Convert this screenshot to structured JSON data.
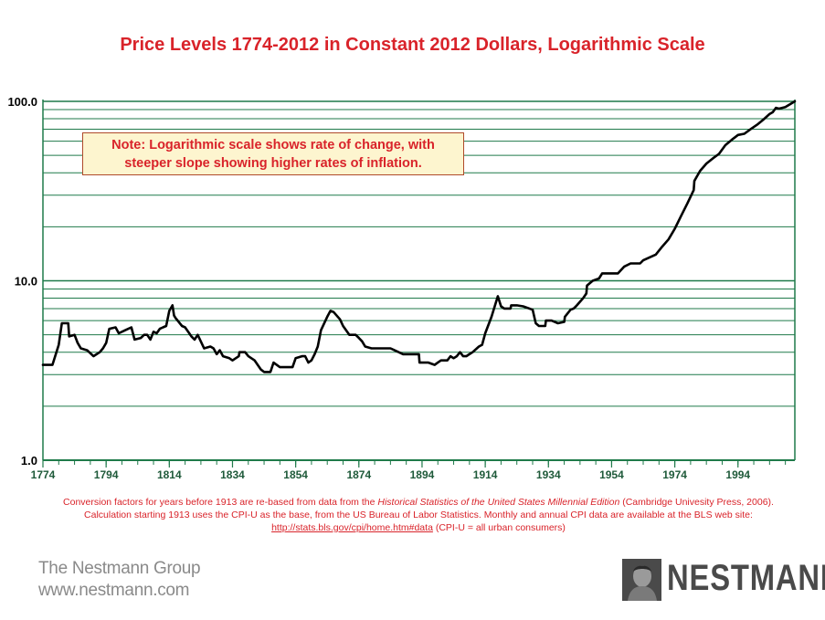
{
  "chart_data": {
    "type": "line",
    "title": "Price Levels 1774-2012 in Constant 2012 Dollars, Logarithmic Scale",
    "y_scale": "log",
    "ylim": [
      1,
      100
    ],
    "xlim": [
      1774,
      2012
    ],
    "y_ticks": [
      {
        "value": 1,
        "label": "1.0"
      },
      {
        "value": 10,
        "label": "10.0"
      },
      {
        "value": 100,
        "label": "100.0"
      }
    ],
    "x_ticks": [
      1774,
      1794,
      1814,
      1834,
      1854,
      1874,
      1894,
      1914,
      1934,
      1954,
      1974,
      1994
    ],
    "x_tick_labels": [
      "1774",
      "1794",
      "1814",
      "1834",
      "1854",
      "1874",
      "1894",
      "1914",
      "1934",
      "1954",
      "1974",
      "1994"
    ],
    "grid": true,
    "series": [
      {
        "color": "#000000",
        "points": [
          [
            1774,
            3.4
          ],
          [
            1777,
            3.4
          ],
          [
            1779,
            4.4
          ],
          [
            1780,
            5.8
          ],
          [
            1781,
            5.8
          ],
          [
            1782,
            5.8
          ],
          [
            1782.3,
            4.9
          ],
          [
            1784,
            5.0
          ],
          [
            1785,
            4.5
          ],
          [
            1786,
            4.2
          ],
          [
            1788,
            4.1
          ],
          [
            1790,
            3.8
          ],
          [
            1792,
            4.0
          ],
          [
            1793,
            4.2
          ],
          [
            1794,
            4.5
          ],
          [
            1795,
            5.4
          ],
          [
            1797,
            5.5
          ],
          [
            1798,
            5.1
          ],
          [
            1800,
            5.3
          ],
          [
            1802,
            5.5
          ],
          [
            1803,
            4.7
          ],
          [
            1805,
            4.8
          ],
          [
            1806,
            5.0
          ],
          [
            1807,
            5.0
          ],
          [
            1808,
            4.7
          ],
          [
            1809,
            5.2
          ],
          [
            1810,
            5.1
          ],
          [
            1811,
            5.4
          ],
          [
            1812,
            5.5
          ],
          [
            1813,
            5.6
          ],
          [
            1814,
            6.8
          ],
          [
            1815,
            7.3
          ],
          [
            1815.5,
            6.4
          ],
          [
            1816,
            6.2
          ],
          [
            1818,
            5.6
          ],
          [
            1819,
            5.5
          ],
          [
            1821,
            4.9
          ],
          [
            1822,
            4.7
          ],
          [
            1823,
            5.0
          ],
          [
            1825,
            4.2
          ],
          [
            1827,
            4.3
          ],
          [
            1828,
            4.2
          ],
          [
            1829,
            3.9
          ],
          [
            1830,
            4.1
          ],
          [
            1831,
            3.8
          ],
          [
            1833,
            3.7
          ],
          [
            1834,
            3.6
          ],
          [
            1836,
            3.8
          ],
          [
            1836.2,
            4.0
          ],
          [
            1838,
            4.0
          ],
          [
            1839,
            3.8
          ],
          [
            1841,
            3.6
          ],
          [
            1843,
            3.2
          ],
          [
            1844,
            3.1
          ],
          [
            1846,
            3.1
          ],
          [
            1847,
            3.5
          ],
          [
            1849,
            3.3
          ],
          [
            1851,
            3.3
          ],
          [
            1853,
            3.3
          ],
          [
            1854,
            3.7
          ],
          [
            1856,
            3.8
          ],
          [
            1857,
            3.8
          ],
          [
            1858,
            3.5
          ],
          [
            1859,
            3.6
          ],
          [
            1860,
            3.9
          ],
          [
            1861,
            4.3
          ],
          [
            1862,
            5.3
          ],
          [
            1864,
            6.3
          ],
          [
            1865,
            6.8
          ],
          [
            1866,
            6.7
          ],
          [
            1868,
            6.1
          ],
          [
            1869,
            5.6
          ],
          [
            1871,
            5.0
          ],
          [
            1873,
            5.0
          ],
          [
            1874,
            4.8
          ],
          [
            1875,
            4.6
          ],
          [
            1876,
            4.3
          ],
          [
            1878,
            4.2
          ],
          [
            1884,
            4.2
          ],
          [
            1888,
            3.9
          ],
          [
            1892,
            3.9
          ],
          [
            1893,
            3.9
          ],
          [
            1893.2,
            3.5
          ],
          [
            1896,
            3.5
          ],
          [
            1898,
            3.4
          ],
          [
            1899,
            3.5
          ],
          [
            1900,
            3.6
          ],
          [
            1902,
            3.6
          ],
          [
            1903,
            3.8
          ],
          [
            1904,
            3.7
          ],
          [
            1905,
            3.8
          ],
          [
            1906,
            4.0
          ],
          [
            1907,
            3.8
          ],
          [
            1908,
            3.8
          ],
          [
            1909,
            3.9
          ],
          [
            1910,
            4.0
          ],
          [
            1912,
            4.3
          ],
          [
            1913,
            4.4
          ],
          [
            1914,
            5.1
          ],
          [
            1916,
            6.3
          ],
          [
            1918,
            8.2
          ],
          [
            1919,
            7.2
          ],
          [
            1920,
            7.0
          ],
          [
            1922,
            7.0
          ],
          [
            1922.2,
            7.3
          ],
          [
            1924,
            7.3
          ],
          [
            1926,
            7.2
          ],
          [
            1929,
            6.9
          ],
          [
            1930,
            5.8
          ],
          [
            1931,
            5.6
          ],
          [
            1933,
            5.6
          ],
          [
            1933.2,
            6.0
          ],
          [
            1935,
            6.0
          ],
          [
            1937,
            5.8
          ],
          [
            1939,
            5.9
          ],
          [
            1939.2,
            6.3
          ],
          [
            1941,
            6.9
          ],
          [
            1942,
            7.0
          ],
          [
            1943,
            7.3
          ],
          [
            1945,
            8.0
          ],
          [
            1946,
            8.5
          ],
          [
            1946.2,
            9.4
          ],
          [
            1948,
            10.0
          ],
          [
            1950,
            10.3
          ],
          [
            1951,
            11.0
          ],
          [
            1953,
            11.0
          ],
          [
            1956,
            11.0
          ],
          [
            1958,
            12.0
          ],
          [
            1960,
            12.5
          ],
          [
            1963,
            12.5
          ],
          [
            1964,
            13.0
          ],
          [
            1966,
            13.5
          ],
          [
            1968,
            14.0
          ],
          [
            1970,
            15.5
          ],
          [
            1972,
            17.0
          ],
          [
            1974,
            19.5
          ],
          [
            1976,
            23.0
          ],
          [
            1978,
            27.0
          ],
          [
            1980,
            32.0
          ],
          [
            1980.2,
            36.0
          ],
          [
            1982,
            41.0
          ],
          [
            1984,
            45.0
          ],
          [
            1986,
            48.0
          ],
          [
            1988,
            51.0
          ],
          [
            1990,
            57.0
          ],
          [
            1992,
            61.0
          ],
          [
            1994,
            65.0
          ],
          [
            1996,
            66.0
          ],
          [
            1998,
            70.0
          ],
          [
            2000,
            74.0
          ],
          [
            2002,
            79.0
          ],
          [
            2004,
            85.0
          ],
          [
            2005,
            87.0
          ],
          [
            2006,
            92.0
          ],
          [
            2007,
            91.0
          ],
          [
            2009,
            93.0
          ],
          [
            2012,
            100.0
          ]
        ]
      }
    ]
  },
  "note": {
    "line1": "Note: Logarithmic scale shows rate of change, with",
    "line2": "steeper slope showing higher rates of inflation."
  },
  "footnote": {
    "part1": "Conversion factors for years before 1913 are re-based from data from the ",
    "italic": "Historical Statistics of the United States Millennial Edition",
    "part2": " (Cambridge Univesity Press, 2006). Calculation starting 1913 uses the CPI-U as the base, from the US Bureau of Labor Statistics. Monthly and annual CPI data are available at the BLS web site: ",
    "link": "http://stats.bls.gov/cpi/home.htm#data",
    "part3": " (CPI-U = all urban consumers)"
  },
  "brand": {
    "company": "The Nestmann Group",
    "website": "www.nestmann.com",
    "logo_text": "NESTMANN"
  },
  "colors": {
    "title": "#d9232a",
    "grid": "#1f7a4a",
    "line": "#000000",
    "note_background": "#fdf5cf",
    "brand_gray": "#8a8a8a",
    "logo_dark": "#4a4a4a"
  }
}
